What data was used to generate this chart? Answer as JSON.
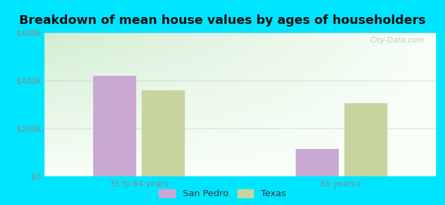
{
  "title": "Breakdown of mean house values by ages of householders",
  "categories": [
    "35 to 64 years",
    "65 years+"
  ],
  "san_pedro_values": [
    420000,
    115000
  ],
  "texas_values": [
    360000,
    305000
  ],
  "san_pedro_color": "#c9a8d4",
  "texas_color": "#c8d4a0",
  "ylim": [
    0,
    600000
  ],
  "yticks": [
    0,
    200000,
    400000,
    600000
  ],
  "ytick_labels": [
    "$0",
    "$200k",
    "$400k",
    "$600k"
  ],
  "legend_labels": [
    "San Pedro",
    "Texas"
  ],
  "background_outer": "#00e5ff",
  "background_inner_top": "#d8efd8",
  "background_inner_bottom": "#f8fff8",
  "bar_width": 0.32,
  "group_positions": [
    1.0,
    2.5
  ],
  "title_fontsize": 13,
  "tick_fontsize": 8.5,
  "legend_fontsize": 9.5
}
